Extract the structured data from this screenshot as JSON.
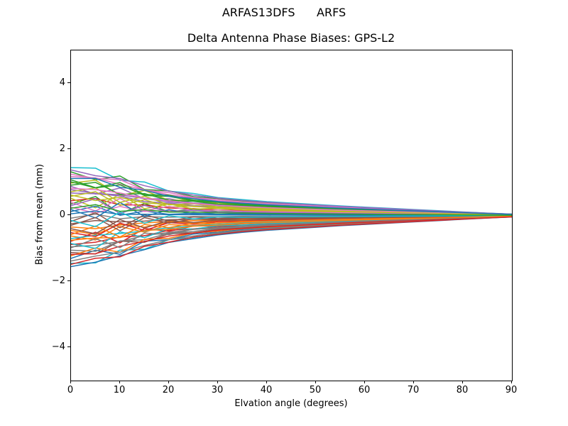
{
  "figure": {
    "suptitle": "ARFAS13DFS      ARFS",
    "background_color": "#ffffff",
    "spine_color": "#000000",
    "text_color": "#000000"
  },
  "chart_data": {
    "type": "line",
    "title": "Delta Antenna Phase Biases: GPS-L2",
    "xlabel": "Elvation angle (degrees)",
    "ylabel": "Bias from mean (mm)",
    "xlim": [
      0,
      90
    ],
    "ylim": [
      -5,
      5
    ],
    "xticks": [
      0,
      10,
      20,
      30,
      40,
      50,
      60,
      70,
      80,
      90
    ],
    "yticks": [
      -4,
      -2,
      0,
      2,
      4
    ],
    "xtick_labels": [
      "0",
      "10",
      "20",
      "30",
      "40",
      "50",
      "60",
      "70",
      "80",
      "90"
    ],
    "ytick_labels": [
      "−4",
      "−2",
      "0",
      "2",
      "4"
    ],
    "grid": false,
    "legend": null,
    "line_width": 1.5,
    "description": "Approximately 54 unlabeled per-antenna delta phase-bias curves; each starts spread between about -1.55 mm and +1.45 mm at 0 degrees elevation, wiggles and crosses below ~20 degrees, then converges smoothly to ~0 mm at 90 degrees",
    "x": [
      0,
      5,
      10,
      15,
      20,
      25,
      30,
      35,
      40,
      45,
      50,
      55,
      60,
      65,
      70,
      75,
      80,
      85,
      90
    ],
    "envelope": [
      1.0,
      0.92,
      0.8,
      0.66,
      0.53,
      0.45,
      0.38,
      0.33,
      0.29,
      0.26,
      0.23,
      0.2,
      0.175,
      0.15,
      0.125,
      0.1,
      0.075,
      0.05,
      0.03
    ],
    "wiggle1": [
      0,
      0.35,
      -0.25,
      0.15,
      -0.08,
      0.04,
      -0.02,
      0.01,
      0,
      0,
      0,
      0,
      0,
      0,
      0,
      0,
      0,
      0,
      0
    ],
    "wiggle2": [
      0,
      -0.2,
      0.3,
      -0.18,
      0.1,
      -0.05,
      0.02,
      -0.01,
      0,
      0,
      0,
      0,
      0,
      0,
      0,
      0,
      0,
      0,
      0
    ],
    "series_format": [
      "start_bias_mm",
      "wiggle1_coeff",
      "wiggle2_coeff"
    ],
    "series": [
      [
        -1.3,
        0.3,
        -0.2
      ],
      [
        -0.62,
        -0.35,
        0.25
      ],
      [
        0.35,
        0.55,
        -0.3
      ],
      [
        0.45,
        0.4,
        0.2
      ],
      [
        0.88,
        -0.4,
        0.1
      ],
      [
        -0.25,
        0.45,
        0.4
      ],
      [
        1.18,
        0.3,
        0.25
      ],
      [
        -0.95,
        -0.25,
        -0.3
      ],
      [
        0.52,
        -0.5,
        0.35
      ],
      [
        1.45,
        0.2,
        -0.15
      ],
      [
        0.12,
        0.6,
        0.2
      ],
      [
        -0.45,
        -0.55,
        -0.15
      ],
      [
        1.32,
        -0.2,
        0.3
      ],
      [
        -0.78,
        0.4,
        -0.35
      ],
      [
        0.68,
        0.35,
        0.45
      ],
      [
        -1.12,
        -0.3,
        0.15
      ],
      [
        0.25,
        -0.6,
        -0.25
      ],
      [
        -0.08,
        0.5,
        0.3
      ],
      [
        0.98,
        0.25,
        -0.4
      ],
      [
        -1.45,
        -0.15,
        0.25
      ],
      [
        -1.55,
        0.15,
        0.2
      ],
      [
        -0.35,
        -0.45,
        -0.4
      ],
      [
        1.08,
        -0.35,
        0.15
      ],
      [
        -0.88,
        0.2,
        0.35
      ],
      [
        0.78,
        -0.25,
        -0.2
      ],
      [
        -0.18,
        0.55,
        -0.3
      ],
      [
        1.25,
        0.15,
        0.4
      ],
      [
        -1.05,
        -0.4,
        -0.1
      ],
      [
        0.58,
        0.45,
        -0.15
      ],
      [
        -0.7,
        0.3,
        0.3
      ],
      [
        0.18,
        -0.4,
        0.5
      ],
      [
        -1.22,
        0.25,
        -0.25
      ],
      [
        0.92,
        0.5,
        0.1
      ],
      [
        -0.52,
        -0.2,
        0.45
      ],
      [
        1.38,
        -0.3,
        -0.2
      ],
      [
        -0.3,
        0.35,
        -0.45
      ],
      [
        0.4,
        -0.55,
        0.2
      ],
      [
        -1.38,
        0.2,
        0.15
      ],
      [
        0.72,
        0.3,
        -0.35
      ],
      [
        -0.85,
        -0.5,
        0.2
      ],
      [
        0.05,
        0.45,
        0.35
      ],
      [
        -0.58,
        0.5,
        -0.2
      ],
      [
        1.02,
        -0.15,
        0.25
      ],
      [
        -1.18,
        -0.35,
        -0.25
      ],
      [
        0.3,
        0.6,
        -0.1
      ],
      [
        -0.4,
        -0.3,
        0.4
      ],
      [
        0.82,
        0.25,
        0.3
      ],
      [
        -0.98,
        0.4,
        -0.3
      ],
      [
        0.62,
        -0.45,
        -0.2
      ],
      [
        -0.15,
        -0.25,
        0.55
      ],
      [
        1.12,
        0.35,
        0.15
      ],
      [
        -0.75,
        -0.2,
        -0.4
      ],
      [
        0.22,
        0.5,
        0.25
      ],
      [
        -1.48,
        0.1,
        -0.15
      ]
    ],
    "palette": [
      "#1f77b4",
      "#ff7f0e",
      "#2ca02c",
      "#d62728",
      "#9467bd",
      "#8c564b",
      "#e377c2",
      "#7f7f7f",
      "#bcbd22",
      "#17becf"
    ]
  }
}
